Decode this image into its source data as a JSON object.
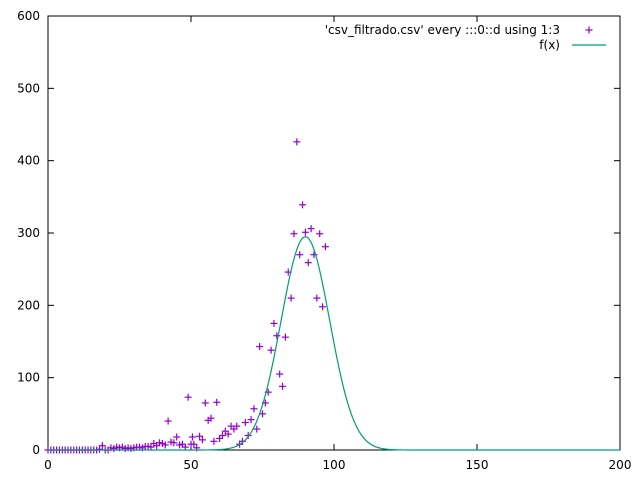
{
  "chart_data": {
    "type": "scatter",
    "title": "",
    "xlabel": "",
    "ylabel": "",
    "xlim": [
      0,
      200
    ],
    "ylim": [
      0,
      600
    ],
    "xticks": [
      "0",
      "50",
      "100",
      "150",
      "200"
    ],
    "yticks": [
      "0",
      "100",
      "200",
      "300",
      "400",
      "500",
      "600"
    ],
    "grid": false,
    "legend_position": "top-right",
    "series": [
      {
        "name": "'csv_filtrado.csv' every :::0::d using 1:3",
        "kind": "points",
        "marker": "plus",
        "color": "#9400d3",
        "points": [
          [
            0,
            0
          ],
          [
            1,
            0
          ],
          [
            2,
            0
          ],
          [
            3,
            0
          ],
          [
            4,
            0
          ],
          [
            5,
            0
          ],
          [
            6,
            0
          ],
          [
            7,
            0
          ],
          [
            8,
            0
          ],
          [
            9,
            0
          ],
          [
            10,
            0
          ],
          [
            11,
            0
          ],
          [
            12,
            0
          ],
          [
            13,
            0
          ],
          [
            14,
            0
          ],
          [
            15,
            0
          ],
          [
            16,
            0
          ],
          [
            17,
            0
          ],
          [
            18,
            1
          ],
          [
            19,
            6
          ],
          [
            20,
            0
          ],
          [
            21,
            0
          ],
          [
            22,
            3
          ],
          [
            23,
            2
          ],
          [
            24,
            4
          ],
          [
            25,
            3
          ],
          [
            26,
            4
          ],
          [
            27,
            2
          ],
          [
            28,
            3
          ],
          [
            29,
            2
          ],
          [
            30,
            3
          ],
          [
            31,
            4
          ],
          [
            32,
            4
          ],
          [
            33,
            3
          ],
          [
            34,
            5
          ],
          [
            35,
            5
          ],
          [
            36,
            4
          ],
          [
            37,
            9
          ],
          [
            38,
            6
          ],
          [
            39,
            10
          ],
          [
            40,
            9
          ],
          [
            41,
            7
          ],
          [
            42,
            40
          ],
          [
            43,
            11
          ],
          [
            44,
            10
          ],
          [
            45,
            18
          ],
          [
            46,
            7
          ],
          [
            47,
            8
          ],
          [
            48,
            4
          ],
          [
            49,
            73
          ],
          [
            50,
            8
          ],
          [
            50.5,
            18
          ],
          [
            51,
            8
          ],
          [
            52,
            3
          ],
          [
            53,
            19
          ],
          [
            54,
            14
          ],
          [
            55,
            65
          ],
          [
            56,
            41
          ],
          [
            57,
            44
          ],
          [
            58,
            12
          ],
          [
            59,
            66
          ],
          [
            60,
            16
          ],
          [
            61,
            20
          ],
          [
            62,
            26
          ],
          [
            63,
            22
          ],
          [
            64,
            33
          ],
          [
            65,
            29
          ],
          [
            66,
            33
          ],
          [
            67,
            8
          ],
          [
            68,
            12
          ],
          [
            69,
            38
          ],
          [
            70,
            20
          ],
          [
            71,
            42
          ],
          [
            72,
            57
          ],
          [
            73,
            29
          ],
          [
            74,
            143
          ],
          [
            75,
            50
          ],
          [
            76,
            65
          ],
          [
            77,
            80
          ],
          [
            78,
            138
          ],
          [
            79,
            175
          ],
          [
            80,
            158
          ],
          [
            81,
            105
          ],
          [
            82,
            88
          ],
          [
            83,
            156
          ],
          [
            84,
            246
          ],
          [
            85,
            210
          ],
          [
            86,
            299
          ],
          [
            87,
            426
          ],
          [
            88,
            270
          ],
          [
            89,
            339
          ],
          [
            90,
            301
          ],
          [
            91,
            259
          ],
          [
            92,
            306
          ],
          [
            93,
            270
          ],
          [
            94,
            210
          ],
          [
            95,
            299
          ],
          [
            96,
            198
          ],
          [
            97,
            281
          ]
        ]
      },
      {
        "name": "f(x)",
        "kind": "gaussian",
        "color": "#009e73",
        "amplitude": 295,
        "mean": 90,
        "sigma": 8.5,
        "x_range": [
          0,
          200
        ]
      }
    ]
  }
}
